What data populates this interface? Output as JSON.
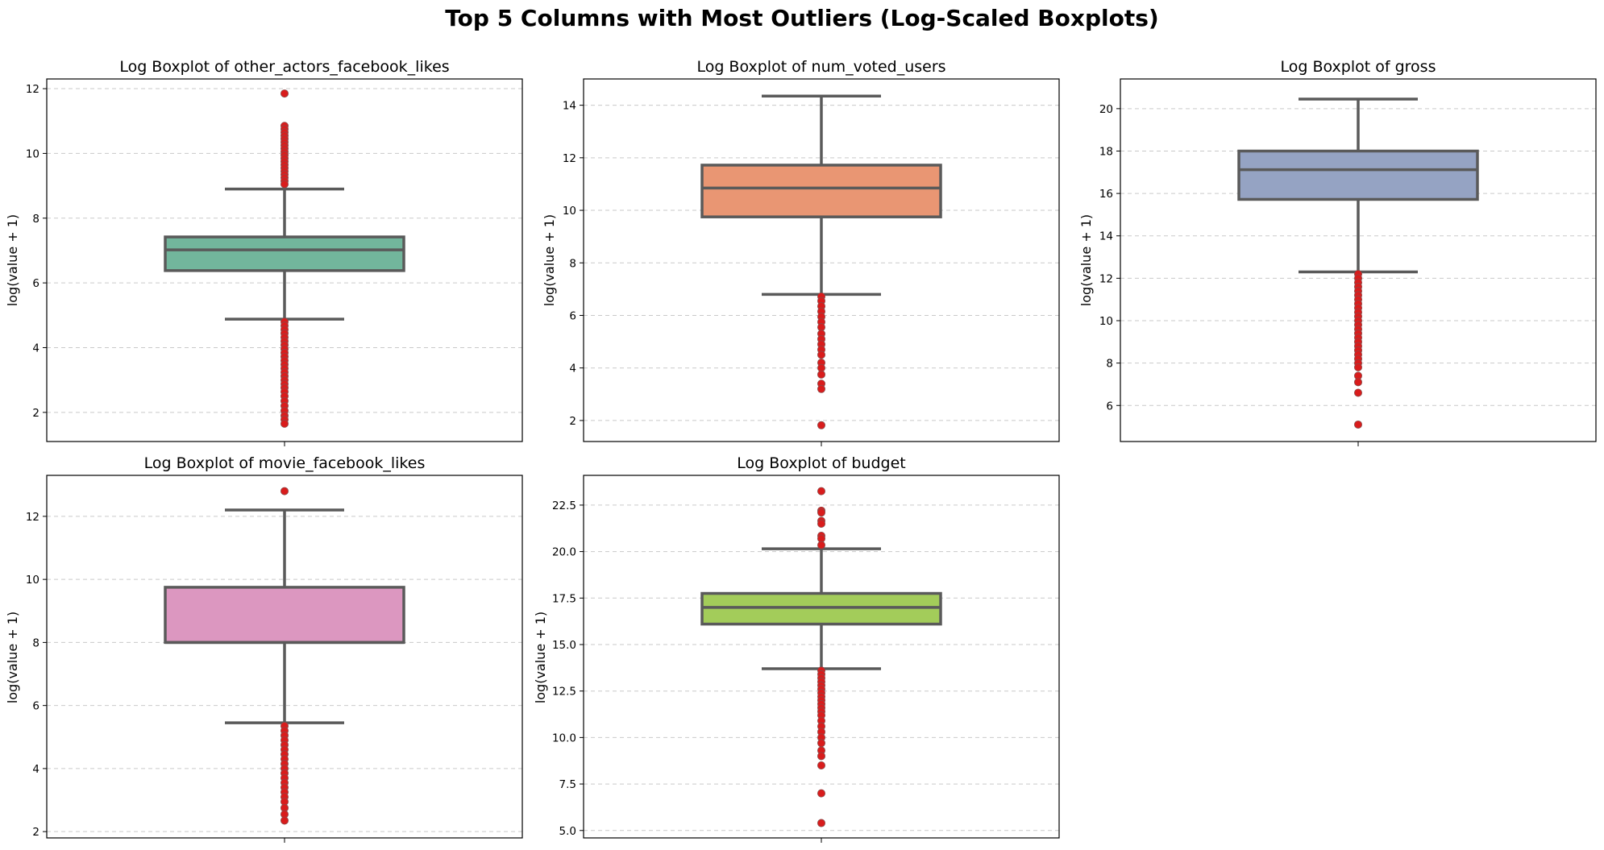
{
  "suptitle": "Top 5 Columns with Most Outliers (Log-Scaled Boxplots)",
  "chart_data": [
    {
      "type": "box",
      "title": "Log Boxplot of other_actors_facebook_likes",
      "ylabel": "log(value + 1)",
      "ylim": [
        1.1,
        12.3
      ],
      "yticks": [
        2,
        4,
        6,
        8,
        10,
        12
      ],
      "ytick_labels": [
        "2",
        "4",
        "6",
        "8",
        "10",
        "12"
      ],
      "fill": "#72b69c",
      "grid": true,
      "box": {
        "whisker_low": 4.88,
        "q1": 6.38,
        "median": 7.02,
        "q3": 7.42,
        "whisker_high": 8.9
      },
      "outliers": [
        11.85,
        10.85,
        10.75,
        10.65,
        10.55,
        10.45,
        10.35,
        10.25,
        10.15,
        10.05,
        9.95,
        9.85,
        9.75,
        9.65,
        9.55,
        9.45,
        9.35,
        9.25,
        9.15,
        9.05,
        4.8,
        4.68,
        4.56,
        4.44,
        4.32,
        4.2,
        4.08,
        3.96,
        3.84,
        3.72,
        3.6,
        3.48,
        3.36,
        3.24,
        3.12,
        3.0,
        2.88,
        2.76,
        2.64,
        2.5,
        2.35,
        2.2,
        2.05,
        1.9,
        1.78,
        1.65
      ]
    },
    {
      "type": "box",
      "title": "Log Boxplot of num_voted_users",
      "ylabel": "log(value + 1)",
      "ylim": [
        1.2,
        15.0
      ],
      "yticks": [
        2,
        4,
        6,
        8,
        10,
        12,
        14
      ],
      "ytick_labels": [
        "2",
        "4",
        "6",
        "8",
        "10",
        "12",
        "14"
      ],
      "fill": "#e99673",
      "grid": true,
      "box": {
        "whisker_low": 6.8,
        "q1": 9.75,
        "median": 10.85,
        "q3": 11.72,
        "whisker_high": 14.35
      },
      "outliers": [
        6.72,
        6.55,
        6.35,
        6.15,
        5.95,
        5.75,
        5.55,
        5.3,
        5.1,
        4.9,
        4.7,
        4.5,
        4.2,
        4.0,
        3.75,
        3.4,
        3.2,
        1.82
      ]
    },
    {
      "type": "box",
      "title": "Log Boxplot of gross",
      "ylabel": "log(value + 1)",
      "ylim": [
        4.3,
        21.4
      ],
      "yticks": [
        6,
        8,
        10,
        12,
        14,
        16,
        18,
        20
      ],
      "ytick_labels": [
        "6",
        "8",
        "10",
        "12",
        "14",
        "16",
        "18",
        "20"
      ],
      "fill": "#95a3c3",
      "grid": true,
      "box": {
        "whisker_low": 12.3,
        "q1": 15.72,
        "median": 17.12,
        "q3": 18.0,
        "whisker_high": 20.45
      },
      "outliers": [
        12.2,
        12.0,
        11.8,
        11.6,
        11.4,
        11.2,
        11.0,
        10.8,
        10.6,
        10.4,
        10.2,
        10.0,
        9.8,
        9.6,
        9.4,
        9.2,
        9.0,
        8.8,
        8.6,
        8.4,
        8.2,
        8.0,
        7.8,
        7.4,
        7.1,
        6.6,
        5.1
      ]
    },
    {
      "type": "box",
      "title": "Log Boxplot of movie_facebook_likes",
      "ylabel": "log(value + 1)",
      "ylim": [
        1.8,
        13.3
      ],
      "yticks": [
        2,
        4,
        6,
        8,
        10,
        12
      ],
      "ytick_labels": [
        "2",
        "4",
        "6",
        "8",
        "10",
        "12"
      ],
      "fill": "#dc97c0",
      "grid": true,
      "box": {
        "whisker_low": 5.45,
        "q1": 8.0,
        "median": 8.0,
        "q3": 9.75,
        "whisker_high": 12.2
      },
      "outliers": [
        12.8,
        5.35,
        5.2,
        5.05,
        4.9,
        4.75,
        4.6,
        4.45,
        4.3,
        4.15,
        4.0,
        3.85,
        3.7,
        3.55,
        3.4,
        3.25,
        3.1,
        2.95,
        2.75,
        2.55,
        2.35
      ]
    },
    {
      "type": "box",
      "title": "Log Boxplot of budget",
      "ylabel": "log(value + 1)",
      "ylim": [
        4.6,
        24.1
      ],
      "yticks": [
        5.0,
        7.5,
        10.0,
        12.5,
        15.0,
        17.5,
        20.0,
        22.5
      ],
      "ytick_labels": [
        "5.0",
        "7.5",
        "10.0",
        "12.5",
        "15.0",
        "17.5",
        "20.0",
        "22.5"
      ],
      "fill": "#a3cc5a",
      "grid": true,
      "box": {
        "whisker_low": 13.7,
        "q1": 16.1,
        "median": 17.0,
        "q3": 17.75,
        "whisker_high": 20.15
      },
      "outliers": [
        23.25,
        22.2,
        22.1,
        21.65,
        21.5,
        20.85,
        20.7,
        20.35,
        13.6,
        13.4,
        13.2,
        13.0,
        12.8,
        12.6,
        12.4,
        12.2,
        12.0,
        11.8,
        11.6,
        11.4,
        11.2,
        10.9,
        10.6,
        10.3,
        10.0,
        9.7,
        9.3,
        9.0,
        8.5,
        7.0,
        5.4
      ]
    }
  ]
}
